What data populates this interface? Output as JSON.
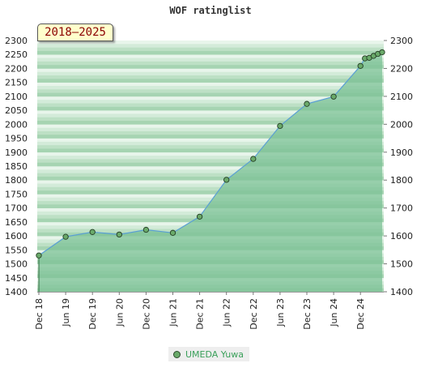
{
  "chart_data": {
    "type": "area",
    "title": "WOF ratinglist",
    "period_label": "2018–2025",
    "ylim": [
      1400,
      2300
    ],
    "yticks": [
      1400,
      1450,
      1500,
      1550,
      1600,
      1650,
      1700,
      1750,
      1800,
      1850,
      1900,
      1950,
      2000,
      2050,
      2100,
      2150,
      2200,
      2250,
      2300
    ],
    "right_yticks": [
      1400,
      1500,
      1600,
      1700,
      1800,
      1900,
      2000,
      2100,
      2200,
      2300
    ],
    "xlim": [
      "2018-12",
      "2025-01"
    ],
    "xticks": [
      {
        "date": "2018-12",
        "label": "Dec 18"
      },
      {
        "date": "2019-06",
        "label": "Jun 19"
      },
      {
        "date": "2019-12",
        "label": "Dec 19"
      },
      {
        "date": "2020-06",
        "label": "Jun 20"
      },
      {
        "date": "2020-12",
        "label": "Dec 20"
      },
      {
        "date": "2021-06",
        "label": "Jun 21"
      },
      {
        "date": "2021-12",
        "label": "Dec 21"
      },
      {
        "date": "2022-06",
        "label": "Jun 22"
      },
      {
        "date": "2022-12",
        "label": "Dec 22"
      },
      {
        "date": "2023-06",
        "label": "Jun 23"
      },
      {
        "date": "2023-12",
        "label": "Dec 23"
      },
      {
        "date": "2024-06",
        "label": "Jun 24"
      },
      {
        "date": "2024-12",
        "label": "Dec 24"
      }
    ],
    "series": [
      {
        "name": "UMEDA Yuwa",
        "color": "#5a9fd4",
        "fill": "#7cc295",
        "marker_color": "#6aaa6a",
        "points": [
          {
            "x": "2018-12",
            "y": 1530
          },
          {
            "x": "2019-06",
            "y": 1597
          },
          {
            "x": "2019-12",
            "y": 1614
          },
          {
            "x": "2020-06",
            "y": 1605
          },
          {
            "x": "2020-12",
            "y": 1622
          },
          {
            "x": "2021-06",
            "y": 1611
          },
          {
            "x": "2021-12",
            "y": 1669
          },
          {
            "x": "2022-06",
            "y": 1801
          },
          {
            "x": "2022-12",
            "y": 1876
          },
          {
            "x": "2023-06",
            "y": 1994
          },
          {
            "x": "2023-12",
            "y": 2073
          },
          {
            "x": "2024-06",
            "y": 2099
          },
          {
            "x": "2024-12",
            "y": 2209
          },
          {
            "x": "2025-01",
            "y": 2236
          }
        ],
        "extra_points_late": [
          {
            "x": "2025-02",
            "y": 2238
          },
          {
            "x": "2025-03",
            "y": 2245
          },
          {
            "x": "2025-04",
            "y": 2252
          },
          {
            "x": "2025-05",
            "y": 2258
          }
        ]
      }
    ],
    "grid": true,
    "legend_position": "bottom-center"
  }
}
